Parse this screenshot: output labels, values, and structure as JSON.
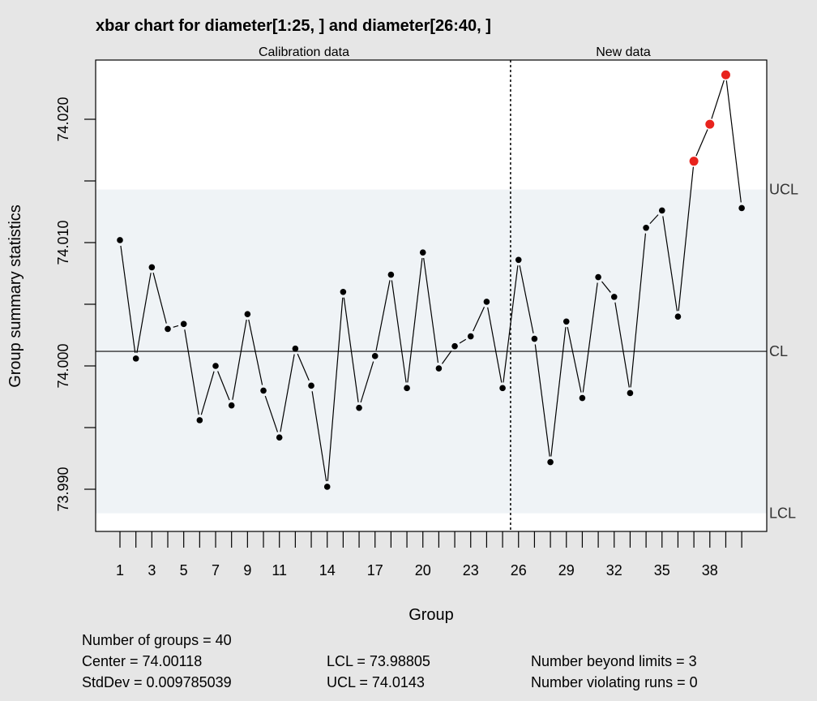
{
  "chart_data": {
    "type": "line",
    "title": "xbar chart for diameter[1:25, ] and diameter[26:40, ]",
    "xlabel": "Group",
    "ylabel": "Group summary statistics",
    "section_labels": [
      "Calibration data",
      "New data"
    ],
    "x": [
      1,
      2,
      3,
      4,
      5,
      6,
      7,
      8,
      9,
      10,
      11,
      12,
      13,
      14,
      15,
      16,
      17,
      18,
      19,
      20,
      21,
      22,
      23,
      24,
      25,
      26,
      27,
      28,
      29,
      30,
      31,
      32,
      33,
      34,
      35,
      36,
      37,
      38,
      39,
      40
    ],
    "x_tick_labels": [
      "1",
      "3",
      "5",
      "7",
      "9",
      "11",
      "14",
      "17",
      "20",
      "23",
      "26",
      "29",
      "32",
      "35",
      "38"
    ],
    "x_tick_positions": [
      1,
      3,
      5,
      7,
      9,
      11,
      14,
      17,
      20,
      23,
      26,
      29,
      32,
      35,
      38
    ],
    "values": [
      74.0102,
      74.0006,
      74.008,
      74.003,
      74.0034,
      73.9956,
      74.0,
      73.9968,
      74.0042,
      73.998,
      73.9942,
      74.0014,
      73.9984,
      73.9902,
      74.006,
      73.9966,
      74.0008,
      74.0074,
      73.9982,
      74.0092,
      73.9998,
      74.0016,
      74.0024,
      74.0052,
      73.9982,
      74.0086,
      74.0022,
      73.9922,
      74.0036,
      73.9974,
      74.0072,
      74.0056,
      73.9978,
      74.0112,
      74.0126,
      74.004,
      74.0166,
      74.0196,
      74.0236,
      74.0128
    ],
    "beyond_limits_groups": [
      37,
      38,
      39
    ],
    "calibration_end": 25,
    "ylim": [
      73.9867,
      74.0256
    ],
    "y_ticks": [
      73.99,
      74.0,
      74.01,
      74.02
    ],
    "y_tick_labels": [
      "73.990",
      "74.000",
      "74.010",
      "74.020"
    ],
    "center": 74.00118,
    "lcl": 73.98805,
    "ucl": 74.0143,
    "limit_labels": {
      "ucl": "UCL",
      "cl": "CL",
      "lcl": "LCL"
    },
    "colors": {
      "points": "#000000",
      "violations": "#e8231d",
      "band": "#eff3f6",
      "background": "#e6e6e6",
      "plot": "#ffffff"
    }
  },
  "stats": {
    "groups": "Number of groups = 40",
    "center": "Center = 74.00118",
    "stddev": "StdDev = 0.009785039",
    "lcl": "LCL = 73.98805",
    "ucl": "UCL = 74.0143",
    "beyond": "Number beyond limits = 3",
    "runs": "Number violating runs = 0"
  }
}
